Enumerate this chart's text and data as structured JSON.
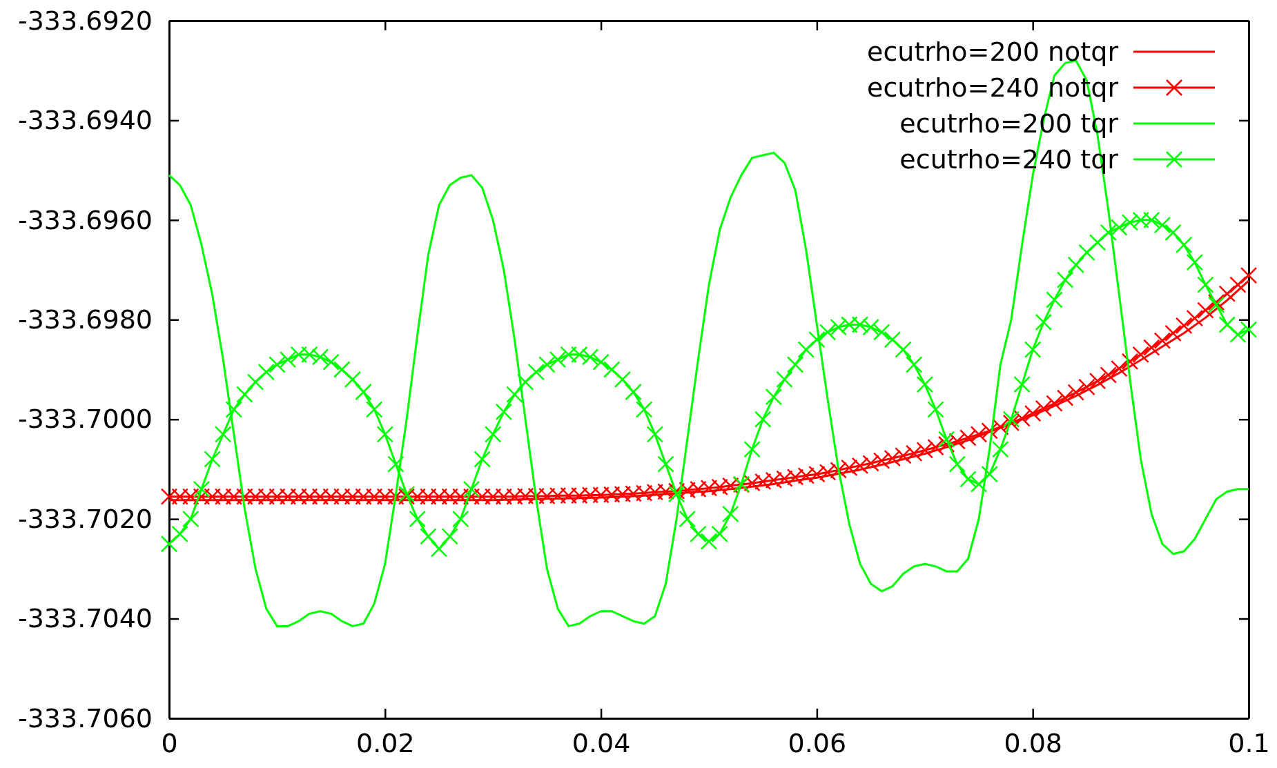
{
  "chart_data": {
    "type": "line",
    "x": [
      0,
      0.001,
      0.002,
      0.003,
      0.004,
      0.005,
      0.006,
      0.007,
      0.008,
      0.009,
      0.01,
      0.011,
      0.012,
      0.013,
      0.014,
      0.015,
      0.016,
      0.017,
      0.018,
      0.019,
      0.02,
      0.021,
      0.022,
      0.023,
      0.024,
      0.025,
      0.026,
      0.027,
      0.028,
      0.029,
      0.03,
      0.031,
      0.032,
      0.033,
      0.034,
      0.035,
      0.036,
      0.037,
      0.038,
      0.039,
      0.04,
      0.041,
      0.042,
      0.043,
      0.044,
      0.045,
      0.046,
      0.047,
      0.048,
      0.049,
      0.05,
      0.051,
      0.052,
      0.053,
      0.054,
      0.055,
      0.056,
      0.057,
      0.058,
      0.059,
      0.06,
      0.061,
      0.062,
      0.063,
      0.064,
      0.065,
      0.066,
      0.067,
      0.068,
      0.069,
      0.07,
      0.071,
      0.072,
      0.073,
      0.074,
      0.075,
      0.076,
      0.077,
      0.078,
      0.079,
      0.08,
      0.081,
      0.082,
      0.083,
      0.084,
      0.085,
      0.086,
      0.087,
      0.088,
      0.089,
      0.09,
      0.091,
      0.092,
      0.093,
      0.094,
      0.095,
      0.096,
      0.097,
      0.098,
      0.099,
      0.1
    ],
    "series": [
      {
        "name": "ecutrho=200 notqr",
        "color": "#ff0000",
        "marker": "none",
        "x": [
          0,
          0.002,
          0.004,
          0.006,
          0.008,
          0.01,
          0.012,
          0.014,
          0.016,
          0.018,
          0.02,
          0.022,
          0.024,
          0.026,
          0.028,
          0.03,
          0.032,
          0.034,
          0.036,
          0.038,
          0.04,
          0.042,
          0.044,
          0.046,
          0.048,
          0.05,
          0.052,
          0.054,
          0.056,
          0.058,
          0.06,
          0.062,
          0.064,
          0.066,
          0.068,
          0.07,
          0.072,
          0.074,
          0.076,
          0.078,
          0.08,
          0.082,
          0.084,
          0.086,
          0.088,
          0.09,
          0.092,
          0.094,
          0.096,
          0.098,
          0.1
        ],
        "values": [
          -333.70162,
          -333.70162,
          -333.70162,
          -333.70162,
          -333.70162,
          -333.70162,
          -333.70162,
          -333.70162,
          -333.70162,
          -333.70162,
          -333.70162,
          -333.70162,
          -333.70162,
          -333.70162,
          -333.70162,
          -333.70162,
          -333.70161,
          -333.7016,
          -333.70159,
          -333.70158,
          -333.70157,
          -333.70155,
          -333.70153,
          -333.7015,
          -333.70147,
          -333.70144,
          -333.7014,
          -333.70135,
          -333.7013,
          -333.70123,
          -333.70117,
          -333.70109,
          -333.70101,
          -333.70091,
          -333.7008,
          -333.70069,
          -333.70056,
          -333.70042,
          -333.70025,
          -333.70009,
          -333.69992,
          -333.69973,
          -333.69953,
          -333.69931,
          -333.69907,
          -333.69881,
          -333.69854,
          -333.69827,
          -333.69796,
          -333.69761,
          -333.69722
        ]
      },
      {
        "name": "ecutrho=240 notqr",
        "color": "#ff0000",
        "marker": "cross",
        "values": [
          -333.70155,
          -333.70155,
          -333.70155,
          -333.70155,
          -333.70155,
          -333.70155,
          -333.70155,
          -333.70155,
          -333.70155,
          -333.70155,
          -333.70155,
          -333.70155,
          -333.70155,
          -333.70155,
          -333.70155,
          -333.70155,
          -333.70155,
          -333.70155,
          -333.70155,
          -333.70155,
          -333.70155,
          -333.70155,
          -333.70155,
          -333.70155,
          -333.70155,
          -333.70155,
          -333.70155,
          -333.70155,
          -333.70155,
          -333.70155,
          -333.70155,
          -333.70155,
          -333.70155,
          -333.70154,
          -333.70154,
          -333.70154,
          -333.70153,
          -333.70153,
          -333.70153,
          -333.70152,
          -333.70152,
          -333.70151,
          -333.7015,
          -333.70149,
          -333.70148,
          -333.70146,
          -333.70145,
          -333.70144,
          -333.70142,
          -333.7014,
          -333.70138,
          -333.70136,
          -333.70133,
          -333.70131,
          -333.70128,
          -333.70125,
          -333.70122,
          -333.70119,
          -333.70116,
          -333.70113,
          -333.7011,
          -333.70106,
          -333.70102,
          -333.70097,
          -333.70093,
          -333.70088,
          -333.70083,
          -333.70078,
          -333.70073,
          -333.70068,
          -333.70062,
          -333.70056,
          -333.7005,
          -333.70044,
          -333.70037,
          -333.7003,
          -333.70023,
          -333.70015,
          -333.70007,
          -333.69998,
          -333.69988,
          -333.69978,
          -333.69968,
          -333.69957,
          -333.69946,
          -333.69935,
          -333.69923,
          -333.69911,
          -333.69898,
          -333.69884,
          -333.6987,
          -333.69856,
          -333.69842,
          -333.69827,
          -333.69812,
          -333.69797,
          -333.69781,
          -333.69765,
          -333.69748,
          -333.6973,
          -333.69711
        ]
      },
      {
        "name": "ecutrho=200 tqr",
        "color": "#00ff00",
        "marker": "none",
        "values": [
          -333.6951,
          -333.6953,
          -333.6957,
          -333.6965,
          -333.6975,
          -333.6988,
          -333.7003,
          -333.7018,
          -333.703,
          -333.7038,
          -333.70415,
          -333.70415,
          -333.70405,
          -333.7039,
          -333.70385,
          -333.7039,
          -333.70405,
          -333.70415,
          -333.7041,
          -333.7037,
          -333.7029,
          -333.7015,
          -333.7,
          -333.6983,
          -333.6967,
          -333.6957,
          -333.6953,
          -333.69515,
          -333.6951,
          -333.69535,
          -333.696,
          -333.697,
          -333.6984,
          -333.7,
          -333.7016,
          -333.703,
          -333.7038,
          -333.70415,
          -333.7041,
          -333.70395,
          -333.70385,
          -333.70385,
          -333.70395,
          -333.70405,
          -333.7041,
          -333.70395,
          -333.7033,
          -333.702,
          -333.7004,
          -333.6988,
          -333.6973,
          -333.6962,
          -333.69555,
          -333.6951,
          -333.69475,
          -333.6947,
          -333.69465,
          -333.69485,
          -333.6954,
          -333.6966,
          -333.6981,
          -333.6996,
          -333.701,
          -333.7021,
          -333.7029,
          -333.7033,
          -333.70345,
          -333.70335,
          -333.7031,
          -333.70295,
          -333.7029,
          -333.70295,
          -333.70305,
          -333.70305,
          -333.7028,
          -333.702,
          -333.7006,
          -333.6989,
          -333.698,
          -333.6965,
          -333.6951,
          -333.694,
          -333.6931,
          -333.69285,
          -333.6928,
          -333.6932,
          -333.6943,
          -333.6958,
          -333.6975,
          -333.6992,
          -333.7008,
          -333.7019,
          -333.7025,
          -333.7027,
          -333.70265,
          -333.7024,
          -333.702,
          -333.7016,
          -333.70145,
          -333.7014,
          -333.7014
        ]
      },
      {
        "name": "ecutrho=240 tqr",
        "color": "#00ff00",
        "marker": "cross",
        "values": [
          -333.7025,
          -333.7023,
          -333.702,
          -333.7014,
          -333.7008,
          -333.7003,
          -333.6998,
          -333.6995,
          -333.69925,
          -333.69905,
          -333.6989,
          -333.6988,
          -333.6987,
          -333.6987,
          -333.69875,
          -333.69885,
          -333.699,
          -333.6992,
          -333.69945,
          -333.6998,
          -333.7003,
          -333.7009,
          -333.7015,
          -333.702,
          -333.70235,
          -333.7026,
          -333.70235,
          -333.702,
          -333.7014,
          -333.7008,
          -333.7003,
          -333.69985,
          -333.6995,
          -333.69925,
          -333.69905,
          -333.6989,
          -333.6988,
          -333.6987,
          -333.6987,
          -333.69875,
          -333.69885,
          -333.699,
          -333.6992,
          -333.69945,
          -333.6998,
          -333.7003,
          -333.7009,
          -333.7015,
          -333.702,
          -333.7023,
          -333.70245,
          -333.7023,
          -333.7019,
          -333.7013,
          -333.7006,
          -333.7,
          -333.69955,
          -333.6992,
          -333.6989,
          -333.6986,
          -333.6984,
          -333.69825,
          -333.69815,
          -333.6981,
          -333.6981,
          -333.69815,
          -333.69825,
          -333.6984,
          -333.6986,
          -333.6989,
          -333.6993,
          -333.6998,
          -333.7004,
          -333.7009,
          -333.7012,
          -333.7013,
          -333.7011,
          -333.7006,
          -333.7,
          -333.6993,
          -333.6986,
          -333.69805,
          -333.6976,
          -333.6972,
          -333.6969,
          -333.69665,
          -333.69645,
          -333.69625,
          -333.69615,
          -333.69605,
          -333.696,
          -333.696,
          -333.6961,
          -333.69625,
          -333.6965,
          -333.69685,
          -333.6973,
          -333.6977,
          -333.6981,
          -333.6983,
          -333.6982
        ]
      }
    ],
    "xlim": [
      0,
      0.1
    ],
    "xticks": [
      0,
      0.02,
      0.04,
      0.06,
      0.08,
      0.1
    ],
    "ylim": [
      -333.706,
      -333.692
    ],
    "yticks": [
      {
        "value": -333.706,
        "label": "-333.7060"
      },
      {
        "value": -333.704,
        "label": "-333.7040"
      },
      {
        "value": -333.702,
        "label": "-333.7020"
      },
      {
        "value": -333.7,
        "label": "-333.7000"
      },
      {
        "value": -333.698,
        "label": "-333.6980"
      },
      {
        "value": -333.696,
        "label": "-333.6960"
      },
      {
        "value": -333.694,
        "label": "-333.6940"
      },
      {
        "value": -333.692,
        "label": "-333.6920"
      }
    ],
    "grid": false,
    "legend": "top right",
    "line_style": "solid"
  }
}
